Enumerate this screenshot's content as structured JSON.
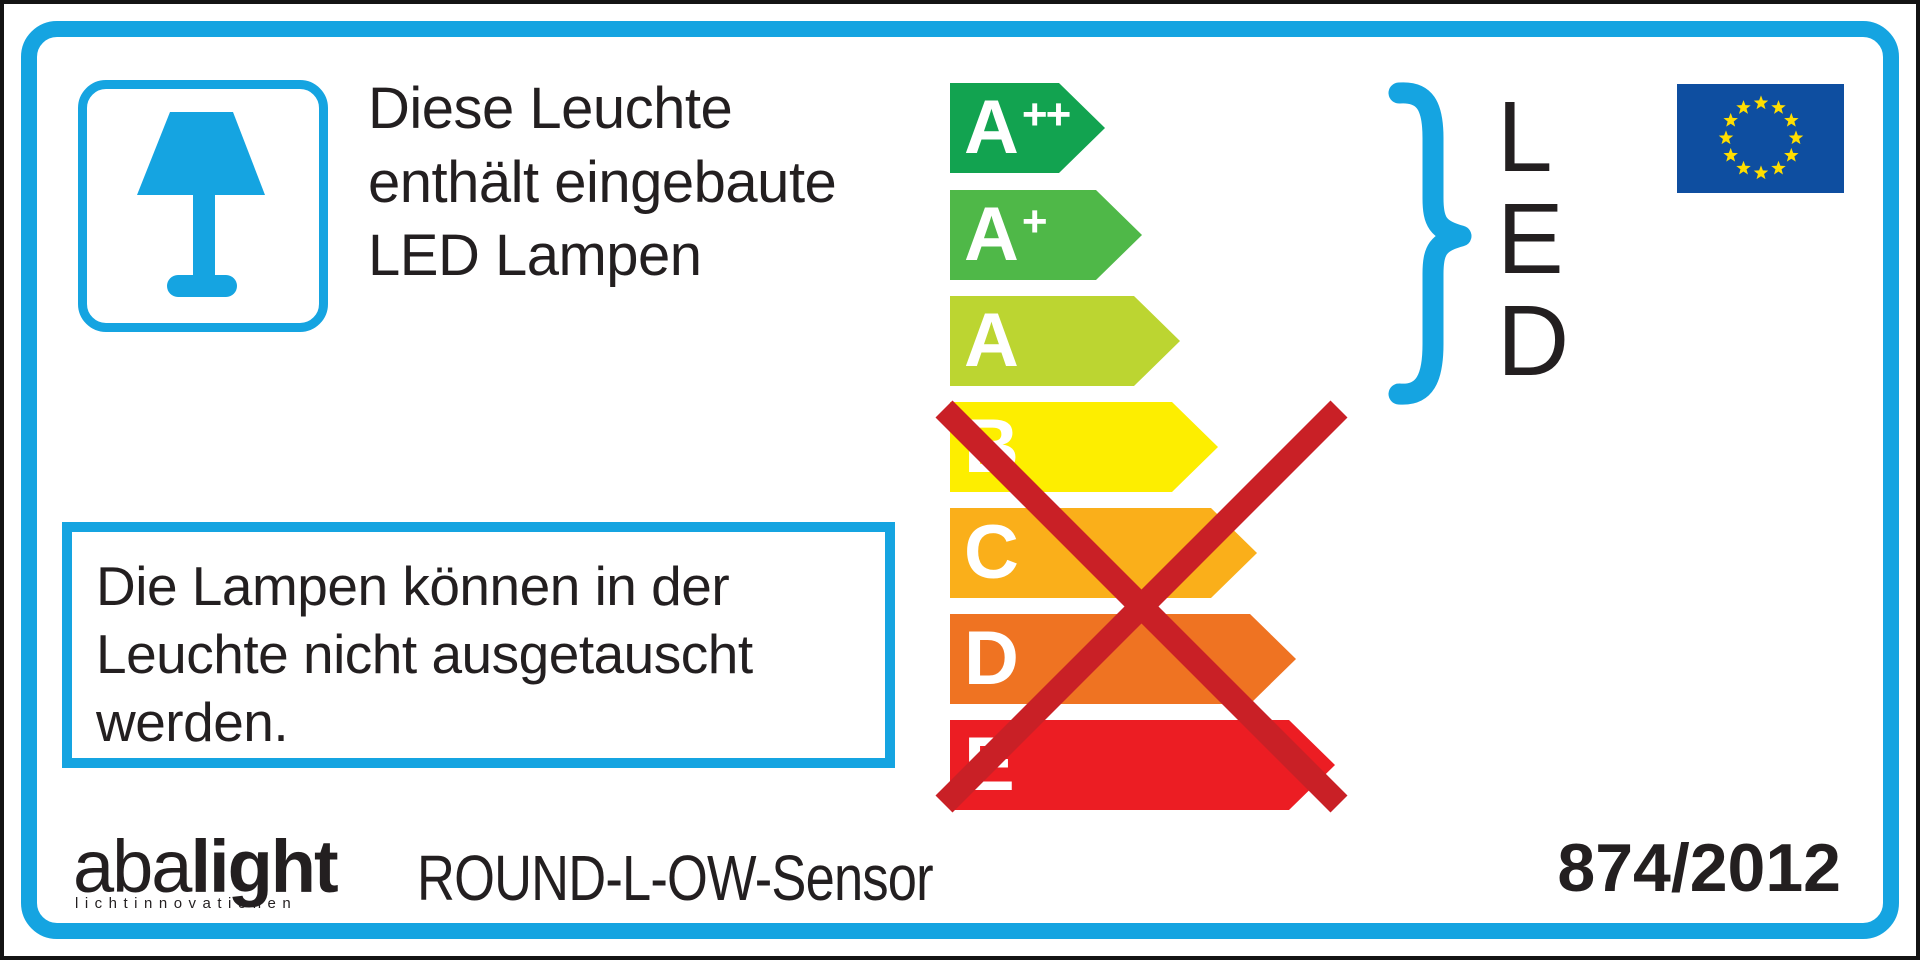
{
  "colors": {
    "accent_cyan": "#15A4E1",
    "text_black": "#231F20"
  },
  "label_title": {
    "lines": [
      "Diese Leuchte",
      "enthält eingebaute",
      "LED Lampen"
    ]
  },
  "energy_scale": {
    "classes": [
      {
        "label": "A",
        "sup": "++",
        "color": "#12A350"
      },
      {
        "label": "A",
        "sup": "+",
        "color": "#4FB848"
      },
      {
        "label": "A",
        "sup": "",
        "color": "#BCD531"
      },
      {
        "label": "B",
        "sup": "",
        "color": "#FDEE00"
      },
      {
        "label": "C",
        "sup": "",
        "color": "#FAAF1A"
      },
      {
        "label": "D",
        "sup": "",
        "color": "#EF7322"
      },
      {
        "label": "E",
        "sup": "",
        "color": "#EC1D23"
      }
    ],
    "letter_color": "#FFFFFF",
    "crossed_out_classes": [
      "B",
      "C",
      "D",
      "E"
    ],
    "cross_color": "#C92026"
  },
  "led_callout": {
    "letters": [
      "L",
      "E",
      "D"
    ]
  },
  "eu_flag": {
    "background": "#0E4EA0",
    "star_color": "#FFDE00",
    "star_count": 12
  },
  "note_box": {
    "lines": [
      "Die Lampen können in der",
      "Leuchte nicht ausgetauscht",
      "werden."
    ]
  },
  "footer": {
    "brand_prefix": "aba",
    "brand_suffix": "light",
    "brand_subtitle": "lichtinnovationen",
    "product_name": "ROUND-L-OW-Sensor",
    "regulation_number": "874/2012"
  }
}
